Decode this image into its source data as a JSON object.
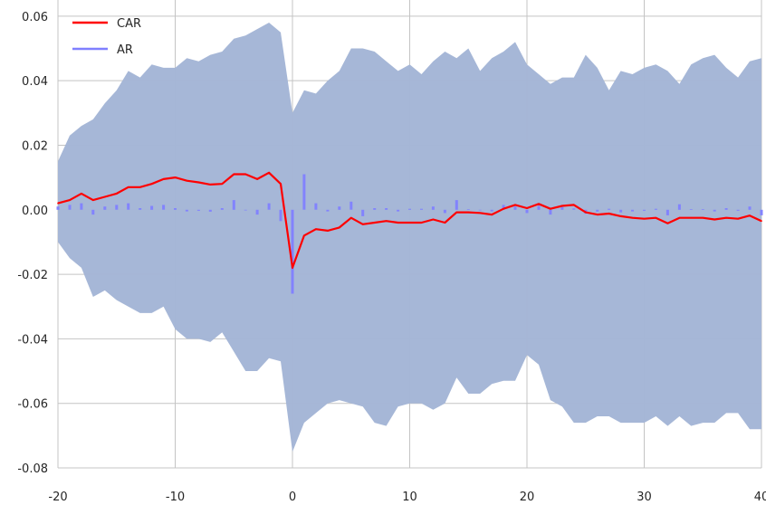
{
  "chart_data": {
    "type": "line",
    "title": "",
    "xlabel": "",
    "ylabel": "",
    "xlim": [
      -20,
      40
    ],
    "ylim": [
      -0.08,
      0.065
    ],
    "grid": true,
    "legend_position": "top-left",
    "xticks": [
      -20,
      -10,
      0,
      10,
      20,
      30,
      40
    ],
    "yticks": [
      -0.08,
      -0.06,
      -0.04,
      -0.02,
      0.0,
      0.02,
      0.04,
      0.06
    ],
    "xtick_labels": [
      "-20",
      "-10",
      "0",
      "10",
      "20",
      "30",
      "40"
    ],
    "ytick_labels": [
      "-0.08",
      "-0.06",
      "-0.04",
      "-0.02",
      "0.00",
      "0.02",
      "0.04",
      "0.06"
    ],
    "colors": {
      "car": "#ff0000",
      "ar": "#7f7fff",
      "band": "#a4b6d6",
      "grid": "#c4c4c4"
    },
    "band": {
      "x": [
        -20,
        -19,
        -18,
        -17,
        -16,
        -15,
        -14,
        -13,
        -12,
        -11,
        -10,
        -9,
        -8,
        -7,
        -6,
        -5,
        -4,
        -3,
        -2,
        -1,
        0,
        1,
        2,
        3,
        4,
        5,
        6,
        7,
        8,
        9,
        10,
        11,
        12,
        13,
        14,
        15,
        16,
        17,
        18,
        19,
        20,
        21,
        22,
        23,
        24,
        25,
        26,
        27,
        28,
        29,
        30,
        31,
        32,
        33,
        34,
        35,
        36,
        37,
        38,
        39,
        40
      ],
      "upper": [
        0.015,
        0.023,
        0.026,
        0.028,
        0.033,
        0.037,
        0.043,
        0.041,
        0.045,
        0.044,
        0.044,
        0.047,
        0.046,
        0.048,
        0.049,
        0.053,
        0.054,
        0.056,
        0.058,
        0.055,
        0.03,
        0.037,
        0.036,
        0.04,
        0.043,
        0.05,
        0.05,
        0.049,
        0.046,
        0.043,
        0.045,
        0.042,
        0.046,
        0.049,
        0.047,
        0.05,
        0.043,
        0.047,
        0.049,
        0.052,
        0.045,
        0.042,
        0.039,
        0.041,
        0.041,
        0.048,
        0.044,
        0.037,
        0.043,
        0.042,
        0.044,
        0.045,
        0.043,
        0.039,
        0.045,
        0.047,
        0.048,
        0.044,
        0.041,
        0.046,
        0.047
      ],
      "lower": [
        -0.01,
        -0.015,
        -0.018,
        -0.027,
        -0.025,
        -0.028,
        -0.03,
        -0.032,
        -0.032,
        -0.03,
        -0.037,
        -0.04,
        -0.04,
        -0.041,
        -0.038,
        -0.044,
        -0.05,
        -0.05,
        -0.046,
        -0.047,
        -0.075,
        -0.066,
        -0.063,
        -0.06,
        -0.059,
        -0.06,
        -0.061,
        -0.066,
        -0.067,
        -0.061,
        -0.06,
        -0.06,
        -0.062,
        -0.06,
        -0.052,
        -0.057,
        -0.057,
        -0.054,
        -0.053,
        -0.053,
        -0.045,
        -0.048,
        -0.059,
        -0.061,
        -0.066,
        -0.066,
        -0.064,
        -0.064,
        -0.066,
        -0.066,
        -0.066,
        -0.064,
        -0.067,
        -0.064,
        -0.067,
        -0.066,
        -0.066,
        -0.063,
        -0.063,
        -0.068,
        -0.068
      ]
    },
    "series": [
      {
        "name": "CAR",
        "style": "line",
        "x": [
          -20,
          -19,
          -18,
          -17,
          -16,
          -15,
          -14,
          -13,
          -12,
          -11,
          -10,
          -9,
          -8,
          -7,
          -6,
          -5,
          -4,
          -3,
          -2,
          -1,
          0,
          1,
          2,
          3,
          4,
          5,
          6,
          7,
          8,
          9,
          10,
          11,
          12,
          13,
          14,
          15,
          16,
          17,
          18,
          19,
          20,
          21,
          22,
          23,
          24,
          25,
          26,
          27,
          28,
          29,
          30,
          31,
          32,
          33,
          34,
          35,
          36,
          37,
          38,
          39,
          40
        ],
        "values": [
          0.002,
          0.003,
          0.005,
          0.003,
          0.004,
          0.005,
          0.007,
          0.007,
          0.008,
          0.0095,
          0.01,
          0.009,
          0.0085,
          0.0078,
          0.008,
          0.011,
          0.011,
          0.0095,
          0.0115,
          0.008,
          -0.018,
          -0.008,
          -0.006,
          -0.0065,
          -0.0055,
          -0.0025,
          -0.0045,
          -0.004,
          -0.0035,
          -0.004,
          -0.004,
          -0.004,
          -0.003,
          -0.004,
          -0.0008,
          -0.0008,
          -0.001,
          -0.0015,
          0.0003,
          0.0015,
          0.0005,
          0.0018,
          0.0003,
          0.0012,
          0.0015,
          -0.0008,
          -0.0015,
          -0.0012,
          -0.002,
          -0.0025,
          -0.0028,
          -0.0025,
          -0.0042,
          -0.0025,
          -0.0025,
          -0.0025,
          -0.003,
          -0.0025,
          -0.0028,
          -0.0018,
          -0.0035
        ]
      },
      {
        "name": "AR",
        "style": "bar",
        "x": [
          -20,
          -19,
          -18,
          -17,
          -16,
          -15,
          -14,
          -13,
          -12,
          -11,
          -10,
          -9,
          -8,
          -7,
          -6,
          -5,
          -4,
          -3,
          -2,
          -1,
          0,
          1,
          2,
          3,
          4,
          5,
          6,
          7,
          8,
          9,
          10,
          11,
          12,
          13,
          14,
          15,
          16,
          17,
          18,
          19,
          20,
          21,
          22,
          23,
          24,
          25,
          26,
          27,
          28,
          29,
          30,
          31,
          32,
          33,
          34,
          35,
          36,
          37,
          38,
          39,
          40
        ],
        "values": [
          0.001,
          0.0015,
          0.002,
          -0.0015,
          0.001,
          0.0015,
          0.002,
          0.0005,
          0.0012,
          0.0015,
          0.0005,
          -0.0005,
          -0.0003,
          -0.0006,
          0.0005,
          0.003,
          -0.0002,
          -0.0015,
          0.002,
          -0.0035,
          -0.026,
          0.011,
          0.002,
          -0.0005,
          0.001,
          0.0025,
          -0.002,
          0.0005,
          0.0005,
          -0.0005,
          0.0003,
          0.0003,
          0.001,
          -0.001,
          0.003,
          0.0002,
          -0.0002,
          -0.0005,
          0.0015,
          0.001,
          -0.001,
          0.0012,
          -0.0015,
          0.0008,
          0.0004,
          -0.0012,
          -0.0006,
          0.0003,
          -0.0008,
          -0.0005,
          -0.0003,
          0.0003,
          -0.0017,
          0.0017,
          0.0002,
          0.0002,
          -0.0005,
          0.0005,
          -0.0003,
          0.001,
          -0.0017
        ]
      }
    ]
  }
}
